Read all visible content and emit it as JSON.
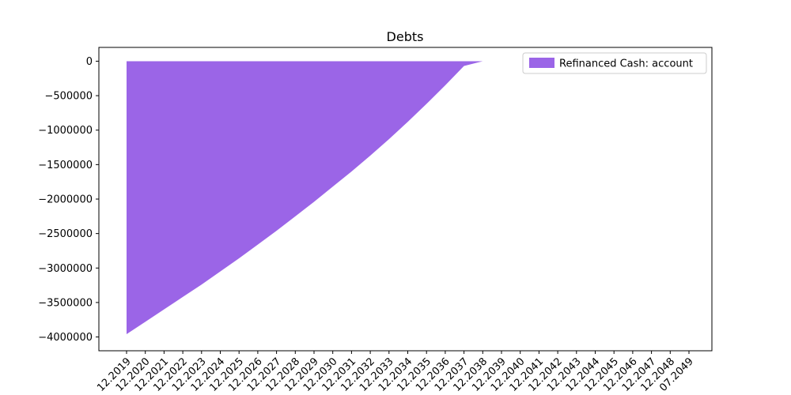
{
  "chart_data": {
    "type": "area",
    "title": "Debts",
    "xlabel": "",
    "ylabel": "",
    "x": [
      "12.2019",
      "12.2020",
      "12.2021",
      "12.2022",
      "12.2023",
      "12.2024",
      "12.2025",
      "12.2026",
      "12.2027",
      "12.2028",
      "12.2029",
      "12.2030",
      "12.2031",
      "12.2032",
      "12.2033",
      "12.2034",
      "12.2035",
      "12.2036",
      "12.2037",
      "12.2038",
      "12.2039",
      "12.2040",
      "12.2041",
      "12.2042",
      "12.2043",
      "12.2044",
      "12.2045",
      "12.2046",
      "12.2047",
      "12.2048",
      "07.2049"
    ],
    "ylim": [
      -4200000,
      200000
    ],
    "y_ticks": [
      0,
      -500000,
      -1000000,
      -1500000,
      -2000000,
      -2500000,
      -3000000,
      -3500000,
      -4000000
    ],
    "y_tick_labels": [
      "0",
      "−500000",
      "−1000000",
      "−1500000",
      "−2000000",
      "−2500000",
      "−3000000",
      "−3500000",
      "−4000000"
    ],
    "grid": false,
    "legend_position": "top-right",
    "series": [
      {
        "name": "Refinanced Cash: account",
        "color": "#9b65e7",
        "values": [
          -3960000,
          -3780000,
          -3600000,
          -3420000,
          -3240000,
          -3050000,
          -2860000,
          -2660000,
          -2460000,
          -2250000,
          -2040000,
          -1820000,
          -1600000,
          -1370000,
          -1130000,
          -880000,
          -620000,
          -350000,
          -70000,
          0,
          0,
          0,
          0,
          0,
          0,
          0,
          0,
          0,
          0,
          0,
          0
        ]
      }
    ]
  }
}
